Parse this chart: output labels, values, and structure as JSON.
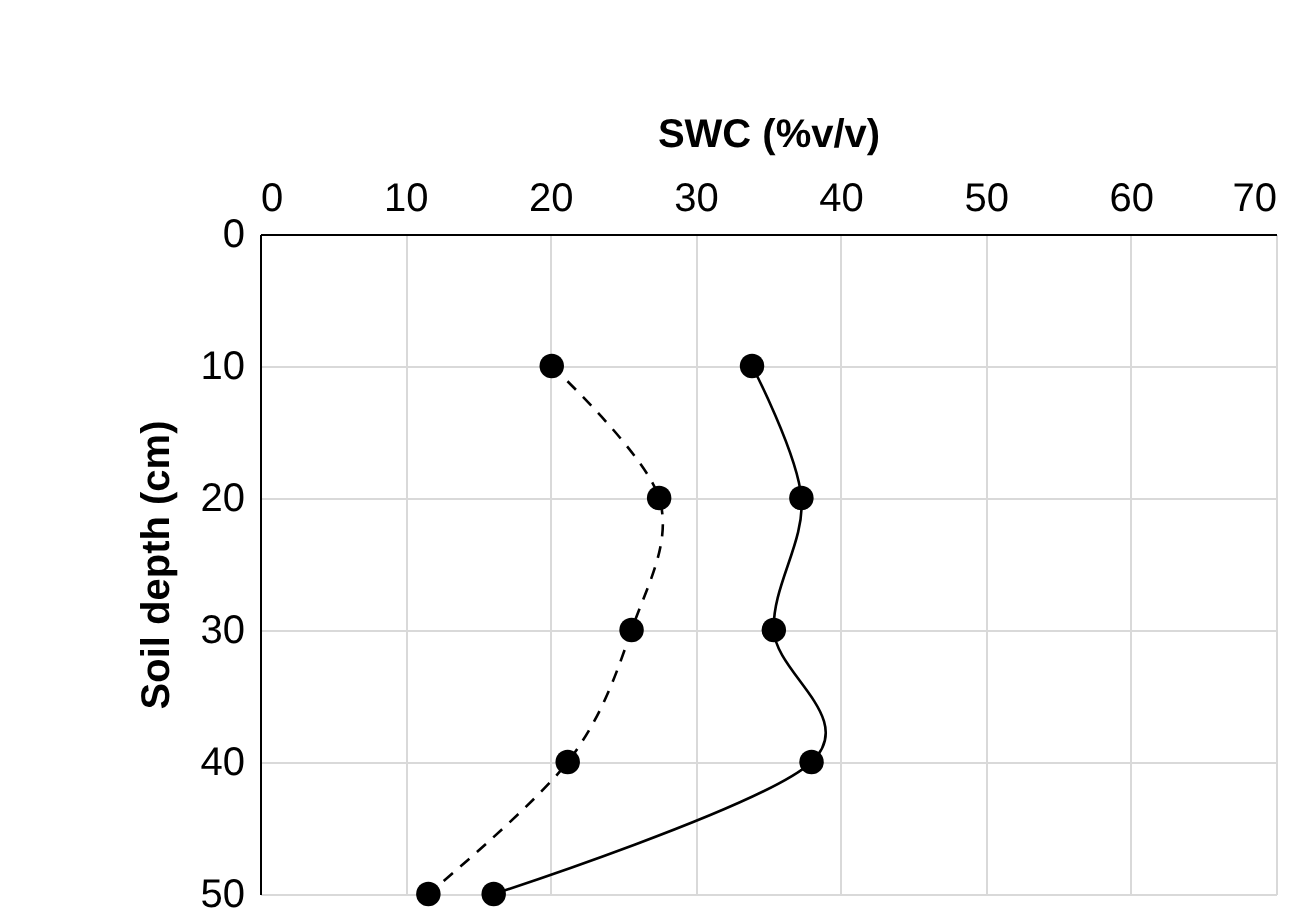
{
  "chart_data": {
    "type": "line",
    "xlabel": "SWC (%v/v)",
    "ylabel": "Soil depth (cm)",
    "xlim": [
      0,
      70
    ],
    "xticks": [
      0,
      10,
      20,
      30,
      40,
      50,
      60,
      70
    ],
    "ylim": [
      50,
      0
    ],
    "yticks": [
      0,
      10,
      20,
      30,
      40,
      50
    ],
    "grid": true,
    "marker": "circle",
    "series": [
      {
        "color": "#000000",
        "line_style": "dashed",
        "x": [
          20.1,
          27.5,
          25.6,
          21.2,
          11.6
        ],
        "values": [
          10,
          20,
          30,
          40,
          50
        ]
      },
      {
        "color": "#000000",
        "line_style": "solid",
        "x": [
          33.9,
          37.3,
          35.4,
          38.0,
          16.1
        ],
        "values": [
          10,
          20,
          30,
          40,
          50
        ]
      }
    ]
  }
}
